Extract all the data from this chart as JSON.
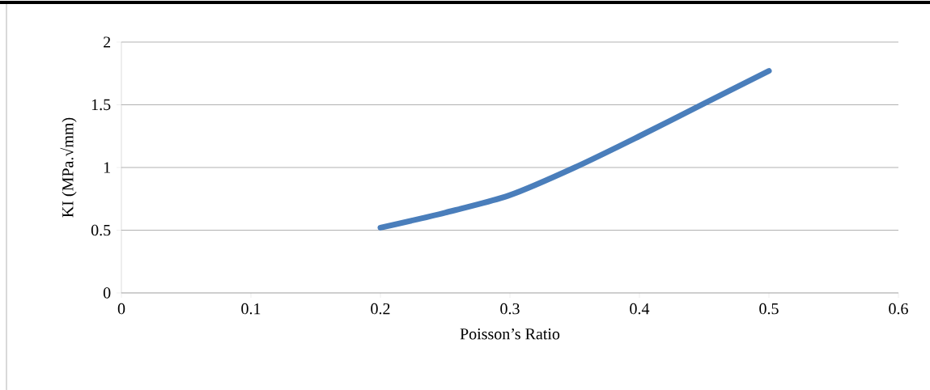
{
  "chart_data": {
    "type": "line",
    "xlabel": "Poisson’s Ratio",
    "ylabel": "KI (MPa.√mm)",
    "x": [
      0.2,
      0.25,
      0.3,
      0.35,
      0.4,
      0.45,
      0.5
    ],
    "series": [
      {
        "color": "#4a7ebb",
        "values": [
          0.52,
          0.64,
          0.78,
          1.0,
          1.25,
          1.51,
          1.77
        ]
      }
    ],
    "xlim": [
      0,
      0.6
    ],
    "xticks": [
      0,
      0.1,
      0.2,
      0.3,
      0.4,
      0.5,
      0.6
    ],
    "ylim": [
      0,
      2
    ],
    "yticks": [
      0,
      0.5,
      1,
      1.5,
      2
    ],
    "grid": "y",
    "marker": "none",
    "line_style": "solid"
  }
}
